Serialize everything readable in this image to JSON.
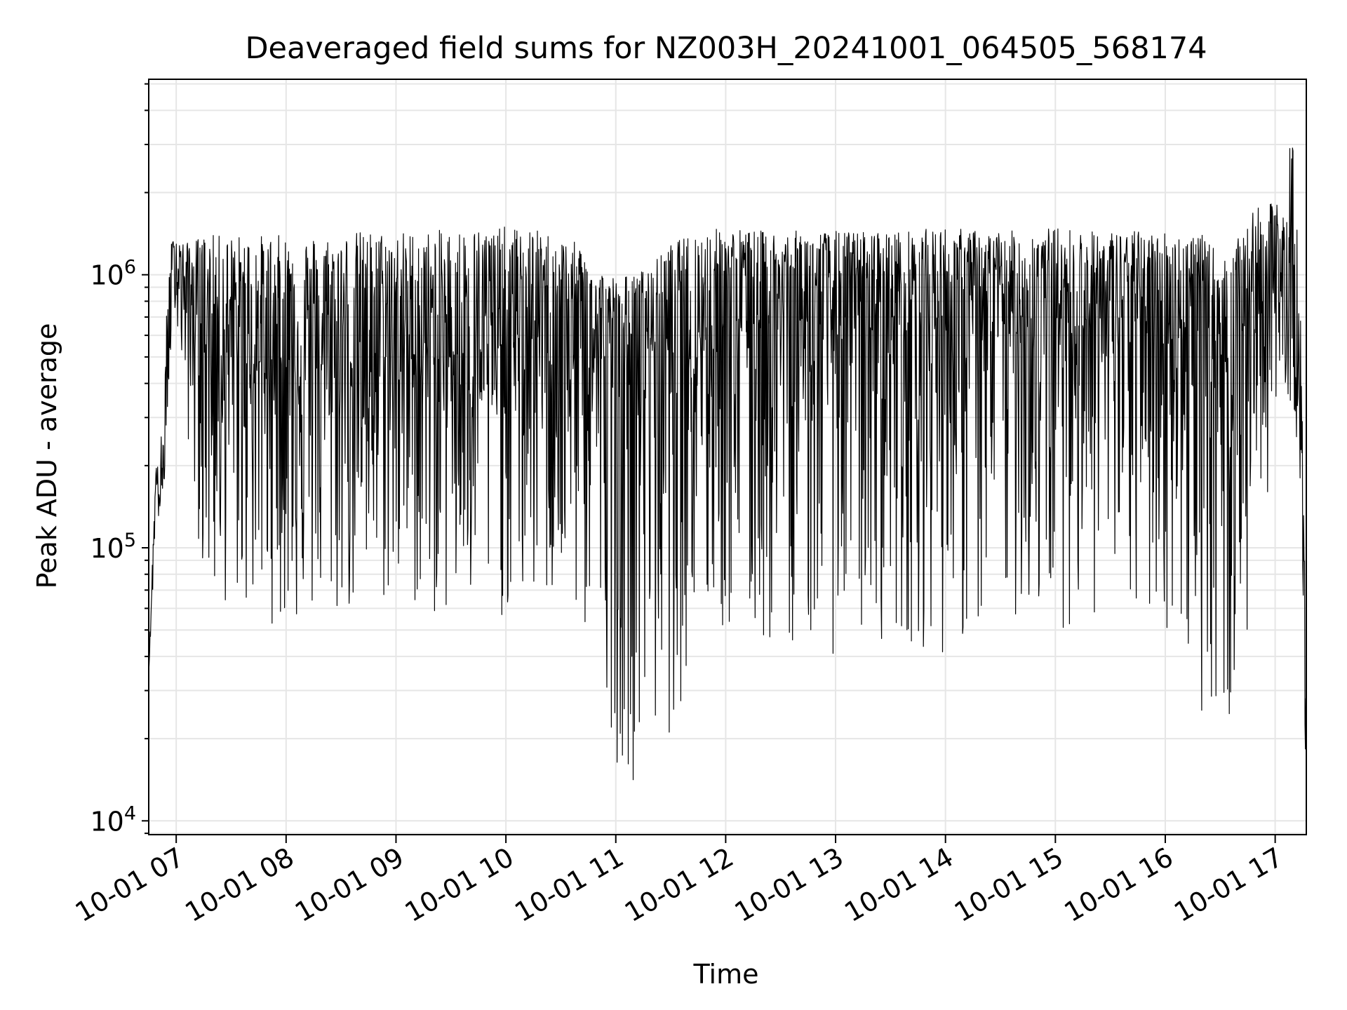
{
  "chart_data": {
    "type": "line",
    "title": "Deaveraged field sums for NZ003H_20241001_064505_568174",
    "xlabel": "Time",
    "ylabel": "Peak ADU - average",
    "yscale": "log",
    "ylim": [
      8900,
      5200000
    ],
    "xlim": [
      "10-01 06:45",
      "10-01 17:17"
    ],
    "grid": true,
    "line_color": "#000000",
    "x_ticks": [
      "10-01 07",
      "10-01 08",
      "10-01 09",
      "10-01 10",
      "10-01 11",
      "10-01 12",
      "10-01 13",
      "10-01 14",
      "10-01 15",
      "10-01 16",
      "10-01 17"
    ],
    "y_ticks": [
      {
        "value": 10000,
        "base": "10",
        "exp": "4"
      },
      {
        "value": 100000,
        "base": "10",
        "exp": "5"
      },
      {
        "value": 1000000,
        "base": "10",
        "exp": "6"
      }
    ],
    "series": [
      {
        "x": [
          "10-01 06:45",
          "10-01 06:47",
          "10-01 06:49",
          "10-01 06:51",
          "10-01 06:53",
          "10-01 06:55",
          "10-01 06:57",
          "10-01 06:59",
          "10-01 07:05",
          "10-01 07:15",
          "10-01 07:20",
          "10-01 07:30",
          "10-01 07:45",
          "10-01 08:00",
          "10-01 08:20",
          "10-01 08:40",
          "10-01 09:00",
          "10-01 09:20",
          "10-01 09:40",
          "10-01 10:00",
          "10-01 10:20",
          "10-01 10:40",
          "10-01 10:55",
          "10-01 11:00",
          "10-01 11:10",
          "10-01 11:20",
          "10-01 11:30",
          "10-01 11:45",
          "10-01 12:00",
          "10-01 12:20",
          "10-01 12:40",
          "10-01 13:00",
          "10-01 13:20",
          "10-01 13:40",
          "10-01 14:00",
          "10-01 14:20",
          "10-01 14:40",
          "10-01 15:00",
          "10-01 15:20",
          "10-01 15:40",
          "10-01 16:00",
          "10-01 16:20",
          "10-01 16:35",
          "10-01 16:45",
          "10-01 16:55",
          "10-01 17:05",
          "10-01 17:10",
          "10-01 17:14",
          "10-01 17:17"
        ],
        "y": [
          35000,
          80000,
          190000,
          150000,
          170000,
          350000,
          750000,
          1200000,
          850000,
          650000,
          550000,
          520000,
          480000,
          500000,
          470000,
          490000,
          520000,
          500000,
          520000,
          560000,
          600000,
          560000,
          500000,
          420000,
          520000,
          600000,
          580000,
          650000,
          700000,
          720000,
          700000,
          700000,
          720000,
          700000,
          710000,
          700000,
          710000,
          700000,
          700000,
          700000,
          690000,
          620000,
          500000,
          750000,
          850000,
          900000,
          600000,
          250000,
          12000
        ],
        "y_low": [
          35000,
          60000,
          150000,
          110000,
          150000,
          250000,
          500000,
          800000,
          300000,
          70000,
          60000,
          60000,
          55000,
          50000,
          50000,
          55000,
          60000,
          55000,
          50000,
          55000,
          60000,
          50000,
          30000,
          16000,
          14000,
          18000,
          20000,
          45000,
          45000,
          40000,
          45000,
          40000,
          45000,
          45000,
          40000,
          45000,
          55000,
          50000,
          55000,
          50000,
          50000,
          25000,
          20000,
          40000,
          150000,
          300000,
          350000,
          150000,
          12000
        ],
        "y_high": [
          35000,
          90000,
          200000,
          200000,
          380000,
          800000,
          1300000,
          1400000,
          1300000,
          1400000,
          1400000,
          1400000,
          1400000,
          1400000,
          1400000,
          1450000,
          1450000,
          1450000,
          1500000,
          1500000,
          1450000,
          1300000,
          1000000,
          1000000,
          1000000,
          1100000,
          1300000,
          1450000,
          1500000,
          1450000,
          1450000,
          1450000,
          1450000,
          1450000,
          1500000,
          1450000,
          1450000,
          1500000,
          1450000,
          1450000,
          1450000,
          1400000,
          1100000,
          1700000,
          1800000,
          1900000,
          4000000,
          650000,
          50000
        ]
      }
    ]
  }
}
